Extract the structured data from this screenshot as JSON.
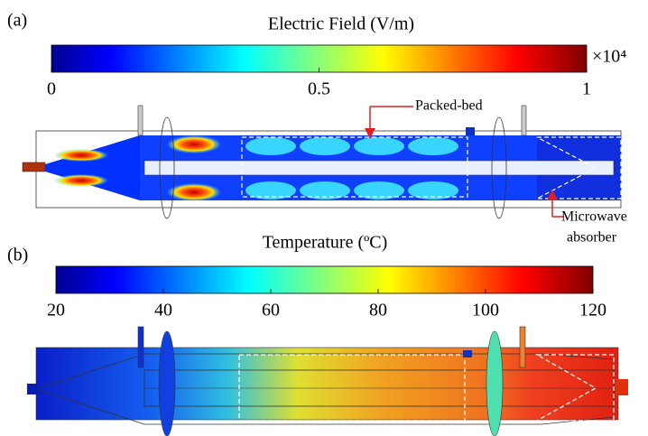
{
  "panels": [
    {
      "label": "(a)",
      "colorbar": {
        "title": "Electric Field (V/m)",
        "ticks": [
          0,
          0.5,
          1
        ],
        "multiplier": "×10⁴"
      },
      "annotations": [
        {
          "lines": [
            "Packed-bed"
          ]
        },
        {
          "lines": [
            "Microwave",
            "absorber"
          ]
        }
      ]
    },
    {
      "label": "(b)",
      "colorbar": {
        "title": "Temperature (ºC)",
        "ticks": [
          20,
          40,
          60,
          80,
          100,
          120
        ]
      }
    }
  ]
}
